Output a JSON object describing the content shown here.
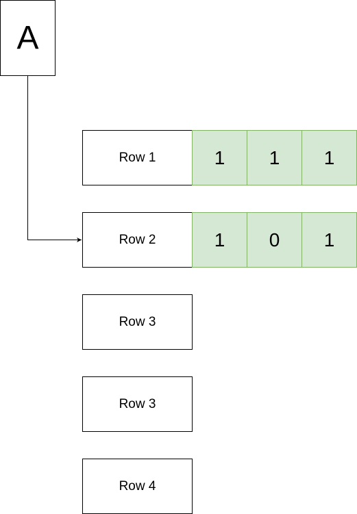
{
  "node_a": {
    "label": "A"
  },
  "rows": [
    {
      "label": "Row 1",
      "values": [
        "1",
        "1",
        "1"
      ]
    },
    {
      "label": "Row 2",
      "values": [
        "1",
        "0",
        "1"
      ]
    },
    {
      "label": "Row 3",
      "values": []
    },
    {
      "label": "Row 3",
      "values": []
    },
    {
      "label": "Row 4",
      "values": []
    }
  ],
  "colors": {
    "cell_fill": "#d5e8d4",
    "cell_border": "#82b366",
    "line": "#000000"
  }
}
